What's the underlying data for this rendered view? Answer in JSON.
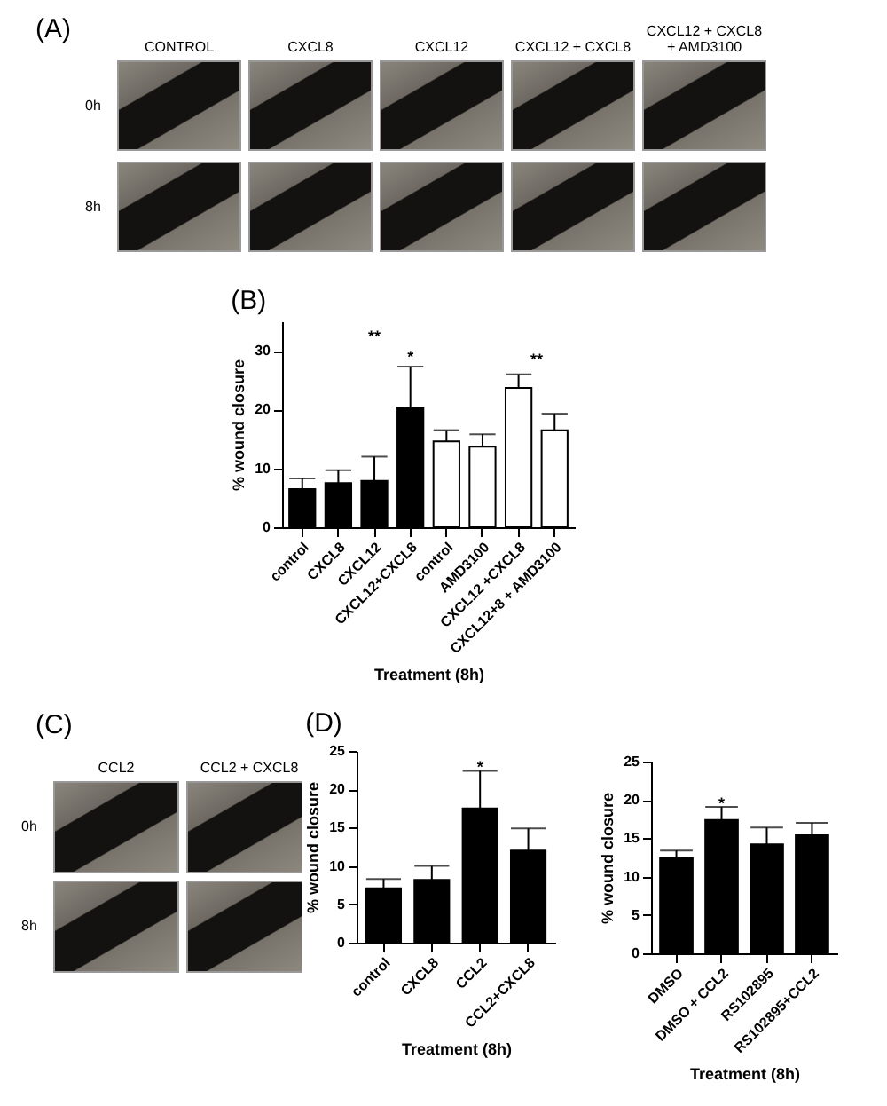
{
  "chart_data": [
    {
      "type": "other",
      "title": "(A)",
      "categories": [
        "CONTROL",
        "CXCL8",
        "CXCL12",
        "CXCL12 + CXCL8",
        "CXCL12 + CXCL8 + AMD3100"
      ],
      "y_categories": [
        "0h",
        "8h"
      ]
    },
    {
      "type": "bar",
      "title": "(B)",
      "xlabel": "Treatment (8h)",
      "ylabel": "% wound closure",
      "categories": [
        "control",
        "CXCL8",
        "CXCL12",
        "CXCL12+CXCL8",
        "control",
        "AMD3100",
        "CXCL12 +CXCL8",
        "CXCL12+8 + AMD3100"
      ],
      "values": [
        6.5,
        7.5,
        7.9,
        20.2,
        14.6,
        13.7,
        23.7,
        16.5
      ],
      "colors": [
        "#000000",
        "#000000",
        "#000000",
        "#000000",
        "#ffffff",
        "#ffffff",
        "#ffffff",
        "#ffffff"
      ],
      "errors": [
        [
          6.5,
          8.3
        ],
        [
          7.5,
          9.7
        ],
        [
          7.9,
          12.0
        ],
        [
          20.2,
          27.3
        ],
        [
          14.6,
          16.5
        ],
        [
          13.7,
          15.8
        ],
        [
          23.7,
          26.0
        ],
        [
          16.5,
          19.3
        ]
      ],
      "ylim": [
        0,
        35
      ],
      "yticks": [
        0,
        10,
        20,
        30
      ],
      "annotations": [
        "**",
        {
          "text": "*",
          "x": "CXCL12+CXCL8",
          "y": 29
        },
        "**"
      ]
    },
    {
      "type": "other",
      "title": "(C)",
      "categories": [
        "CCL2",
        "CCL2 + CXCL8"
      ],
      "y_categories": [
        "0h",
        "8h"
      ]
    },
    {
      "type": "bar",
      "title": "(D)",
      "xlabel": "Treatment (8h)",
      "ylabel": "% wound closure",
      "categories": [
        "control",
        "CXCL8",
        "CCL2",
        "CCL2+CXCL8"
      ],
      "values": [
        7.1,
        8.2,
        17.5,
        12.0
      ],
      "color": "#000000",
      "errors": [
        [
          7.1,
          8.3
        ],
        [
          8.2,
          10.0
        ],
        [
          17.5,
          22.4
        ],
        [
          12.0,
          14.9
        ]
      ],
      "ylim": [
        0,
        25
      ],
      "yticks": [
        0,
        5,
        10,
        15,
        20,
        25
      ],
      "annotations": [
        {
          "text": "*",
          "x": "CCL2",
          "y": 22.9
        }
      ]
    },
    {
      "type": "bar",
      "xlabel": "Treatment (8h)",
      "ylabel": "% wound closure",
      "categories": [
        "DMSO",
        "DMSO + CCL2",
        "RS102895",
        "RS102895+CCL2"
      ],
      "values": [
        12.4,
        17.4,
        14.2,
        15.4
      ],
      "color": "#000000",
      "errors": [
        [
          12.4,
          13.4
        ],
        [
          17.4,
          19.1
        ],
        [
          14.2,
          16.4
        ],
        [
          15.4,
          17.0
        ]
      ],
      "ylim": [
        0,
        25
      ],
      "yticks": [
        0,
        5,
        10,
        15,
        20,
        25
      ],
      "annotations": [
        {
          "text": "*",
          "x": "DMSO + CCL2",
          "y": 19.6
        }
      ]
    }
  ]
}
